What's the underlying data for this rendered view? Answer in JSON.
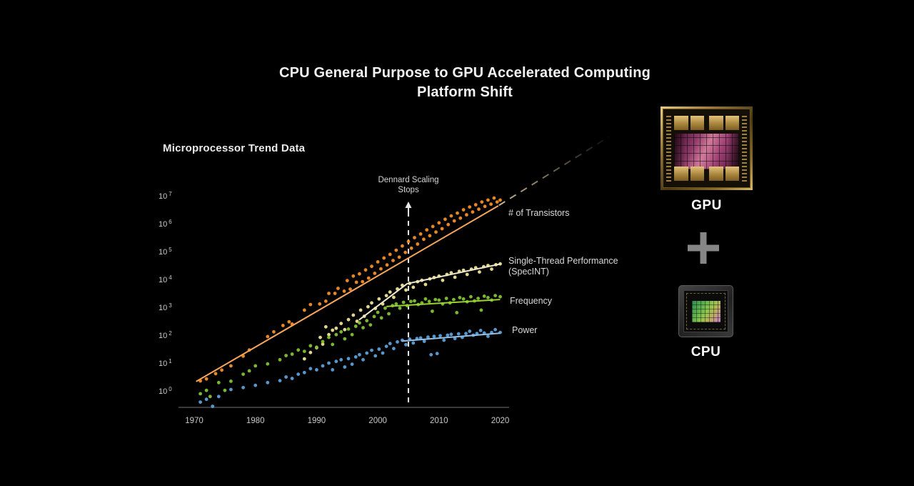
{
  "slide": {
    "title_line1": "CPU General Purpose to GPU Accelerated Computing",
    "title_line2": "Platform Shift",
    "chart_heading": "Microprocessor Trend Data",
    "gpu_label": "GPU",
    "cpu_label": "CPU"
  },
  "annotation": {
    "line1": "Dennard Scaling",
    "line2": "Stops"
  },
  "colors": {
    "background": "#000000",
    "title_text": "#f2f2f2",
    "axis_text": "#c9c9c9",
    "axis_line": "#3a3a3a",
    "dennard_line": "#e8e8e8",
    "transistors_point": "#f28e26",
    "transistors_line": "#f5a55c",
    "projection_dash": "#d5c0a0",
    "single_thread_point": "#ede298",
    "single_thread_line": "#efeaca",
    "frequency_point": "#7fc131",
    "frequency_line": "#98d331",
    "power_point": "#5c9fd6",
    "power_line": "#93bfe8"
  },
  "chart_data": {
    "type": "scatter",
    "title": "Microprocessor Trend Data",
    "xlabel": "",
    "ylabel": "",
    "grid": false,
    "x_axis": {
      "ticks": [
        1970,
        1980,
        1990,
        2000,
        2010,
        2020
      ],
      "range": [
        1969,
        2021
      ]
    },
    "y_axis": {
      "scale": "log10",
      "base_label": "10",
      "tick_exponents": [
        0,
        1,
        2,
        3,
        4,
        5,
        6,
        7
      ],
      "range_exponents": [
        0,
        7
      ]
    },
    "dennard": {
      "year": 2005
    },
    "legend": {
      "transistors": "# of Transistors",
      "single_thread_line1": "Single-Thread Performance",
      "single_thread_line2": "(SpecINT)",
      "frequency": "Frequency",
      "power": "Power"
    },
    "series": [
      {
        "id": "transistors",
        "name": "# of Transistors",
        "point_color": "#f28e26",
        "line_color": "#f5a55c",
        "trend_line": [
          [
            1970.4,
            0.35
          ],
          [
            2019.6,
            6.63
          ]
        ],
        "projection": [
          [
            2019.8,
            6.66
          ],
          [
            2037.8,
            9.12
          ]
        ],
        "points": [
          [
            1971,
            0.36
          ],
          [
            1972,
            0.43
          ],
          [
            1973.5,
            0.62
          ],
          [
            1974.5,
            0.75
          ],
          [
            1976,
            0.9
          ],
          [
            1978,
            1.25
          ],
          [
            1979,
            1.47
          ],
          [
            1982,
            1.95
          ],
          [
            1983,
            2.12
          ],
          [
            1984.5,
            2.35
          ],
          [
            1985.5,
            2.48
          ],
          [
            1986,
            2.4
          ],
          [
            1988,
            2.9
          ],
          [
            1989,
            3.1
          ],
          [
            1990.5,
            3.12
          ],
          [
            1991.5,
            3.22
          ],
          [
            1992,
            3.5
          ],
          [
            1993,
            3.5
          ],
          [
            1993.5,
            3.68
          ],
          [
            1994.5,
            3.58
          ],
          [
            1995,
            3.96
          ],
          [
            1995.5,
            3.65
          ],
          [
            1996,
            4.12
          ],
          [
            1996.5,
            3.9
          ],
          [
            1997,
            4.2
          ],
          [
            1997.5,
            3.92
          ],
          [
            1998,
            4.34
          ],
          [
            1998.5,
            4.05
          ],
          [
            1999,
            4.47
          ],
          [
            1999.5,
            4.22
          ],
          [
            2000,
            4.63
          ],
          [
            2000.5,
            4.38
          ],
          [
            2001,
            4.77
          ],
          [
            2001.5,
            4.52
          ],
          [
            2002,
            4.9
          ],
          [
            2002.5,
            4.68
          ],
          [
            2003,
            5.05
          ],
          [
            2003.5,
            4.8
          ],
          [
            2004,
            5.2
          ],
          [
            2004.5,
            4.97
          ],
          [
            2005,
            5.36
          ],
          [
            2005.5,
            5.12
          ],
          [
            2006,
            5.5
          ],
          [
            2006.5,
            5.27
          ],
          [
            2007,
            5.63
          ],
          [
            2007.5,
            5.44
          ],
          [
            2008,
            5.78
          ],
          [
            2008.5,
            5.57
          ],
          [
            2009,
            5.9
          ],
          [
            2009.5,
            5.7
          ],
          [
            2010,
            6.03
          ],
          [
            2010.5,
            5.82
          ],
          [
            2011,
            6.16
          ],
          [
            2011.5,
            5.97
          ],
          [
            2012,
            6.28
          ],
          [
            2012.5,
            6.1
          ],
          [
            2013,
            6.38
          ],
          [
            2013.5,
            6.2
          ],
          [
            2014,
            6.5
          ],
          [
            2014.5,
            6.32
          ],
          [
            2015,
            6.6
          ],
          [
            2015.5,
            6.42
          ],
          [
            2016,
            6.68
          ],
          [
            2016.5,
            6.52
          ],
          [
            2017,
            6.78
          ],
          [
            2017.5,
            6.62
          ],
          [
            2018,
            6.85
          ],
          [
            2018.5,
            6.7
          ],
          [
            2019,
            6.92
          ],
          [
            2019.5,
            6.78
          ],
          [
            2020,
            6.85
          ]
        ]
      },
      {
        "id": "single-thread-performance",
        "name": "Single-Thread Performance (SpecINT)",
        "point_color": "#ede298",
        "line_color": "#efeaca",
        "trend_line": [
          [
            1997,
            2.56
          ],
          [
            2004.8,
            3.85
          ],
          [
            2019.9,
            4.55
          ]
        ],
        "projection": null,
        "points": [
          [
            1988,
            1.15
          ],
          [
            1989,
            1.38
          ],
          [
            1990,
            1.55
          ],
          [
            1990.6,
            1.92
          ],
          [
            1991,
            1.68
          ],
          [
            1991.5,
            2.3
          ],
          [
            1992,
            2.02
          ],
          [
            1992.6,
            2.18
          ],
          [
            1993.2,
            2.25
          ],
          [
            1994,
            2.42
          ],
          [
            1994.6,
            2.2
          ],
          [
            1995.2,
            2.56
          ],
          [
            1996,
            2.72
          ],
          [
            1996.6,
            2.5
          ],
          [
            1997.2,
            2.9
          ],
          [
            1997.8,
            2.68
          ],
          [
            1998.4,
            3.02
          ],
          [
            1999,
            3.16
          ],
          [
            1999.6,
            2.96
          ],
          [
            2000.2,
            3.3
          ],
          [
            2000.8,
            3.12
          ],
          [
            2001.4,
            3.42
          ],
          [
            2002,
            3.55
          ],
          [
            2002.6,
            3.36
          ],
          [
            2003.2,
            3.66
          ],
          [
            2004,
            3.79
          ],
          [
            2004.6,
            3.62
          ],
          [
            2005.2,
            3.86
          ],
          [
            2005.8,
            3.72
          ],
          [
            2006.5,
            3.92
          ],
          [
            2007.2,
            3.97
          ],
          [
            2007.8,
            3.82
          ],
          [
            2008.5,
            4.02
          ],
          [
            2009.2,
            4.07
          ],
          [
            2010,
            4.12
          ],
          [
            2010.6,
            3.97
          ],
          [
            2011.3,
            4.18
          ],
          [
            2012,
            4.24
          ],
          [
            2012.6,
            4.08
          ],
          [
            2013.3,
            4.29
          ],
          [
            2014,
            4.33
          ],
          [
            2014.6,
            4.18
          ],
          [
            2015.3,
            4.37
          ],
          [
            2016,
            4.42
          ],
          [
            2016.6,
            4.27
          ],
          [
            2017.3,
            4.46
          ],
          [
            2018,
            4.5
          ],
          [
            2018.6,
            4.37
          ],
          [
            2019.3,
            4.53
          ],
          [
            2020,
            4.56
          ]
        ]
      },
      {
        "id": "frequency",
        "name": "Frequency",
        "point_color": "#7fc131",
        "line_color": "#98d331",
        "trend_line": [
          [
            2001.5,
            3.03
          ],
          [
            2019.9,
            3.28
          ]
        ],
        "projection": null,
        "points": [
          [
            1971,
            -0.1
          ],
          [
            1972,
            0.02
          ],
          [
            1972.6,
            -0.2
          ],
          [
            1974,
            0.3
          ],
          [
            1975,
            0.02
          ],
          [
            1976,
            0.35
          ],
          [
            1978,
            0.6
          ],
          [
            1979,
            0.72
          ],
          [
            1980,
            0.9
          ],
          [
            1982,
            0.97
          ],
          [
            1984,
            1.12
          ],
          [
            1985,
            1.27
          ],
          [
            1986,
            1.32
          ],
          [
            1987,
            1.47
          ],
          [
            1988,
            1.42
          ],
          [
            1989,
            1.62
          ],
          [
            1990,
            1.57
          ],
          [
            1991,
            1.77
          ],
          [
            1992,
            1.92
          ],
          [
            1992.6,
            1.67
          ],
          [
            1993.2,
            2.02
          ],
          [
            1994,
            2.12
          ],
          [
            1994.6,
            1.87
          ],
          [
            1995.2,
            2.22
          ],
          [
            1995.8,
            2.02
          ],
          [
            1996.4,
            2.32
          ],
          [
            1997,
            2.44
          ],
          [
            1997.6,
            2.27
          ],
          [
            1998.2,
            2.52
          ],
          [
            1998.8,
            2.37
          ],
          [
            1999.4,
            2.67
          ],
          [
            2000,
            2.82
          ],
          [
            2000.6,
            2.62
          ],
          [
            2001.2,
            2.97
          ],
          [
            2001.8,
            2.77
          ],
          [
            2002.4,
            3.06
          ],
          [
            2003,
            3.12
          ],
          [
            2003.6,
            2.97
          ],
          [
            2004.2,
            3.18
          ],
          [
            2004.8,
            3.06
          ],
          [
            2005.4,
            3.21
          ],
          [
            2006,
            3.23
          ],
          [
            2006.6,
            3.1
          ],
          [
            2007.2,
            3.16
          ],
          [
            2007.8,
            3.3
          ],
          [
            2008.4,
            3.21
          ],
          [
            2008.9,
            2.86
          ],
          [
            2009.4,
            3.28
          ],
          [
            2010,
            3.26
          ],
          [
            2010.6,
            3.12
          ],
          [
            2011.2,
            3.32
          ],
          [
            2011.8,
            3.16
          ],
          [
            2012.4,
            3.28
          ],
          [
            2012.9,
            2.81
          ],
          [
            2013.4,
            3.35
          ],
          [
            2014,
            3.3
          ],
          [
            2014.6,
            3.2
          ],
          [
            2015.2,
            3.38
          ],
          [
            2015.8,
            3.23
          ],
          [
            2016.4,
            3.32
          ],
          [
            2016.9,
            2.9
          ],
          [
            2017.4,
            3.4
          ],
          [
            2018,
            3.35
          ],
          [
            2018.6,
            3.26
          ],
          [
            2019.2,
            3.42
          ],
          [
            2020,
            3.38
          ]
        ]
      },
      {
        "id": "power",
        "name": "Power",
        "point_color": "#5c9fd6",
        "line_color": "#93bfe8",
        "trend_line": [
          [
            2004,
            1.79
          ],
          [
            2019.9,
            2.07
          ]
        ],
        "projection": null,
        "points": [
          [
            1971,
            -0.4
          ],
          [
            1972,
            -0.3
          ],
          [
            1973,
            -0.55
          ],
          [
            1974,
            -0.2
          ],
          [
            1976,
            0.05
          ],
          [
            1978,
            0.12
          ],
          [
            1980,
            0.2
          ],
          [
            1982,
            0.3
          ],
          [
            1984,
            0.37
          ],
          [
            1985,
            0.5
          ],
          [
            1986,
            0.45
          ],
          [
            1987,
            0.6
          ],
          [
            1988,
            0.66
          ],
          [
            1989,
            0.8
          ],
          [
            1990,
            0.76
          ],
          [
            1991,
            0.9
          ],
          [
            1992,
            1.0
          ],
          [
            1992.6,
            0.76
          ],
          [
            1993.2,
            1.06
          ],
          [
            1994,
            1.12
          ],
          [
            1994.6,
            0.86
          ],
          [
            1995.2,
            1.16
          ],
          [
            1995.8,
            0.96
          ],
          [
            1996.4,
            1.22
          ],
          [
            1997,
            1.3
          ],
          [
            1997.6,
            1.12
          ],
          [
            1998.2,
            1.36
          ],
          [
            1999,
            1.46
          ],
          [
            1999.6,
            1.26
          ],
          [
            2000.2,
            1.5
          ],
          [
            2000.8,
            1.36
          ],
          [
            2001.4,
            1.6
          ],
          [
            2002,
            1.7
          ],
          [
            2002.6,
            1.52
          ],
          [
            2003.2,
            1.76
          ],
          [
            2004,
            1.82
          ],
          [
            2004.6,
            1.66
          ],
          [
            2005.2,
            1.86
          ],
          [
            2005.8,
            1.72
          ],
          [
            2006.4,
            1.88
          ],
          [
            2007,
            1.9
          ],
          [
            2007.6,
            1.78
          ],
          [
            2008.2,
            1.93
          ],
          [
            2008.7,
            1.3
          ],
          [
            2009.2,
            1.96
          ],
          [
            2009.7,
            1.34
          ],
          [
            2010.2,
            1.98
          ],
          [
            2010.8,
            1.82
          ],
          [
            2011.4,
            2.0
          ],
          [
            2012,
            2.03
          ],
          [
            2012.6,
            1.88
          ],
          [
            2013.2,
            2.05
          ],
          [
            2013.8,
            1.92
          ],
          [
            2014.4,
            2.06
          ],
          [
            2015,
            2.14
          ],
          [
            2015.6,
            2.0
          ],
          [
            2016.2,
            2.06
          ],
          [
            2016.8,
            2.17
          ],
          [
            2017.4,
            2.08
          ],
          [
            2018,
            1.96
          ],
          [
            2018.6,
            2.1
          ],
          [
            2019.2,
            2.2
          ],
          [
            2020,
            2.1
          ]
        ]
      }
    ]
  }
}
